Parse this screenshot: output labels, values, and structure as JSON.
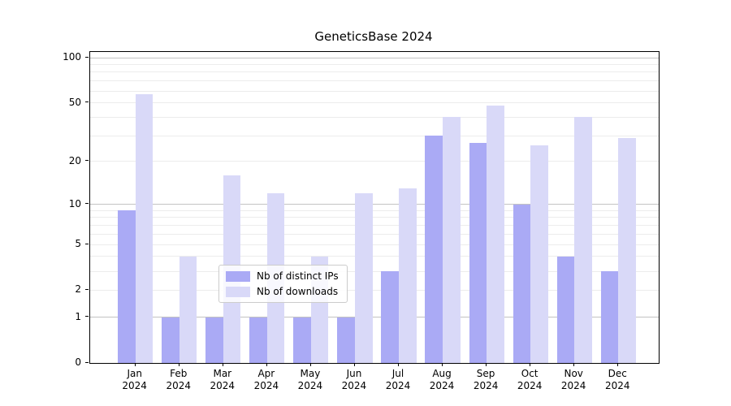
{
  "title": "GeneticsBase 2024",
  "chart_data": {
    "type": "bar",
    "title": "GeneticsBase 2024",
    "yscale": "log1p",
    "ylim": [
      0,
      109
    ],
    "grid": "horizontal",
    "legend_position": "lower-center",
    "categories": [
      {
        "month": "Jan",
        "year": "2024"
      },
      {
        "month": "Feb",
        "year": "2024"
      },
      {
        "month": "Mar",
        "year": "2024"
      },
      {
        "month": "Apr",
        "year": "2024"
      },
      {
        "month": "May",
        "year": "2024"
      },
      {
        "month": "Jun",
        "year": "2024"
      },
      {
        "month": "Jul",
        "year": "2024"
      },
      {
        "month": "Aug",
        "year": "2024"
      },
      {
        "month": "Sep",
        "year": "2024"
      },
      {
        "month": "Oct",
        "year": "2024"
      },
      {
        "month": "Nov",
        "year": "2024"
      },
      {
        "month": "Dec",
        "year": "2024"
      }
    ],
    "series": [
      {
        "name": "Nb of distinct IPs",
        "color": "#aaaaf5",
        "values": [
          9,
          1,
          1,
          1,
          1,
          1,
          3,
          30,
          27,
          10,
          4,
          3
        ]
      },
      {
        "name": "Nb of downloads",
        "color": "#d9d9f8",
        "values": [
          57,
          4,
          16,
          12,
          4,
          12,
          13,
          40,
          48,
          26,
          40,
          29
        ]
      }
    ],
    "yticks": [
      0,
      1,
      2,
      5,
      10,
      20,
      50,
      100
    ],
    "gridlines": {
      "major": [
        1,
        10,
        100
      ],
      "minor": [
        2,
        3,
        4,
        5,
        6,
        7,
        8,
        9,
        20,
        30,
        40,
        50,
        60,
        70,
        80,
        90
      ]
    },
    "colors": {
      "spine": "#000000",
      "major_grid": "#c3c3c3",
      "minor_grid": "#ececec",
      "background": "#ffffff"
    }
  }
}
